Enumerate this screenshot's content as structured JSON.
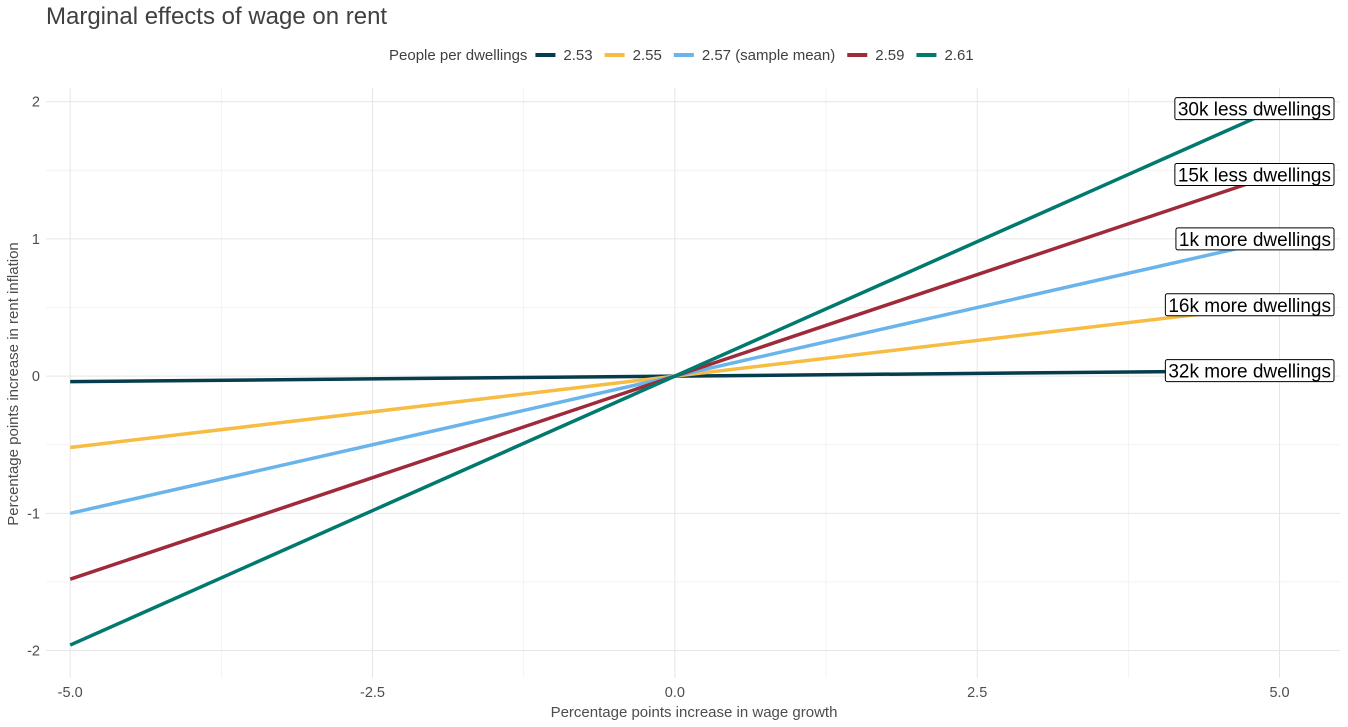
{
  "chart_data": {
    "type": "line",
    "title": "Marginal effects of wage on rent",
    "xlabel": "Percentage points increase in wage growth",
    "ylabel": "Percentage points increase in rent inflation",
    "xlim": [
      -5.2,
      5.5
    ],
    "ylim": [
      -2.2,
      2.1
    ],
    "x_ticks": [
      -5.0,
      -2.5,
      0.0,
      2.5,
      5.0
    ],
    "x_tick_labels": [
      "-5.0",
      "-2.5",
      "0.0",
      "2.5",
      "5.0"
    ],
    "y_ticks": [
      -2,
      -1,
      0,
      1,
      2
    ],
    "y_tick_labels": [
      "-2",
      "-1",
      "0",
      "1",
      "2"
    ],
    "grid": true,
    "legend": {
      "title": "People per dwellings",
      "position": "top"
    },
    "x": [
      -5,
      5
    ],
    "series": [
      {
        "name": "2.53",
        "color": "#063d4d",
        "values": [
          -0.04,
          0.04
        ]
      },
      {
        "name": "2.55",
        "color": "#f7bc42",
        "values": [
          -0.52,
          0.52
        ]
      },
      {
        "name": "2.57 (sample mean)",
        "color": "#69b4ea",
        "values": [
          -1.0,
          1.0
        ]
      },
      {
        "name": "2.59",
        "color": "#9e2a3a",
        "values": [
          -1.48,
          1.48
        ]
      },
      {
        "name": "2.61",
        "color": "#00796f",
        "values": [
          -1.96,
          1.96
        ]
      }
    ],
    "annotations": [
      {
        "text": "30k less dwellings",
        "x": 4.85,
        "y": 1.95
      },
      {
        "text": "15k less dwellings",
        "x": 4.85,
        "y": 1.47
      },
      {
        "text": "1k more dwellings",
        "x": 4.85,
        "y": 1.0
      },
      {
        "text": "16k more dwellings",
        "x": 4.85,
        "y": 0.52
      },
      {
        "text": "32k more dwellings",
        "x": 4.85,
        "y": 0.04
      }
    ]
  }
}
